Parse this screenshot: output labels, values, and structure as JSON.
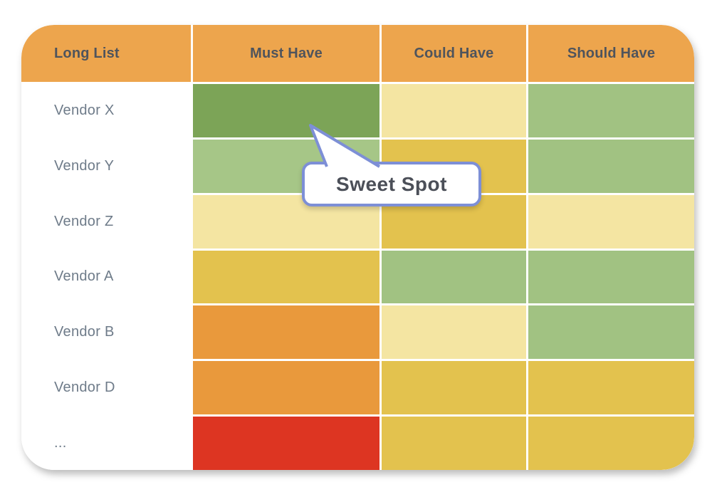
{
  "table": {
    "columns": [
      {
        "id": "long-list",
        "label": "Long List"
      },
      {
        "id": "must-have",
        "label": "Must Have"
      },
      {
        "id": "could-have",
        "label": "Could Have"
      },
      {
        "id": "should-have",
        "label": "Should Have"
      }
    ],
    "rows": [
      {
        "label": "Vendor X",
        "cells": [
          "dark_green",
          "pale_yellow",
          "green"
        ]
      },
      {
        "label": "Vendor Y",
        "cells": [
          "light_green",
          "gold",
          "green"
        ]
      },
      {
        "label": "Vendor Z",
        "cells": [
          "pale_yellow",
          "gold",
          "pale_yellow"
        ]
      },
      {
        "label": "Vendor A",
        "cells": [
          "gold",
          "green",
          "green"
        ]
      },
      {
        "label": "Vendor B",
        "cells": [
          "orange",
          "pale_yellow",
          "green"
        ]
      },
      {
        "label": "Vendor D",
        "cells": [
          "orange",
          "gold",
          "gold"
        ]
      },
      {
        "label": "...",
        "cells": [
          "red",
          "gold",
          "gold"
        ]
      }
    ]
  },
  "callout": {
    "label": "Sweet Spot",
    "points_to": "Vendor X / Must Have"
  },
  "colors": {
    "header": "#EDA54D",
    "header_text": "#4F545C",
    "row_text": "#6E7B89",
    "dark_green": "#7CA457",
    "green": "#A1C282",
    "light_green": "#A6C687",
    "pale_yellow": "#F4E5A2",
    "gold": "#E3C24E",
    "orange": "#E9993C",
    "red": "#DD3522",
    "callout_border": "#7D8FD6",
    "callout_text": "#4B4F58",
    "grid_line": "#FFFFFF"
  }
}
